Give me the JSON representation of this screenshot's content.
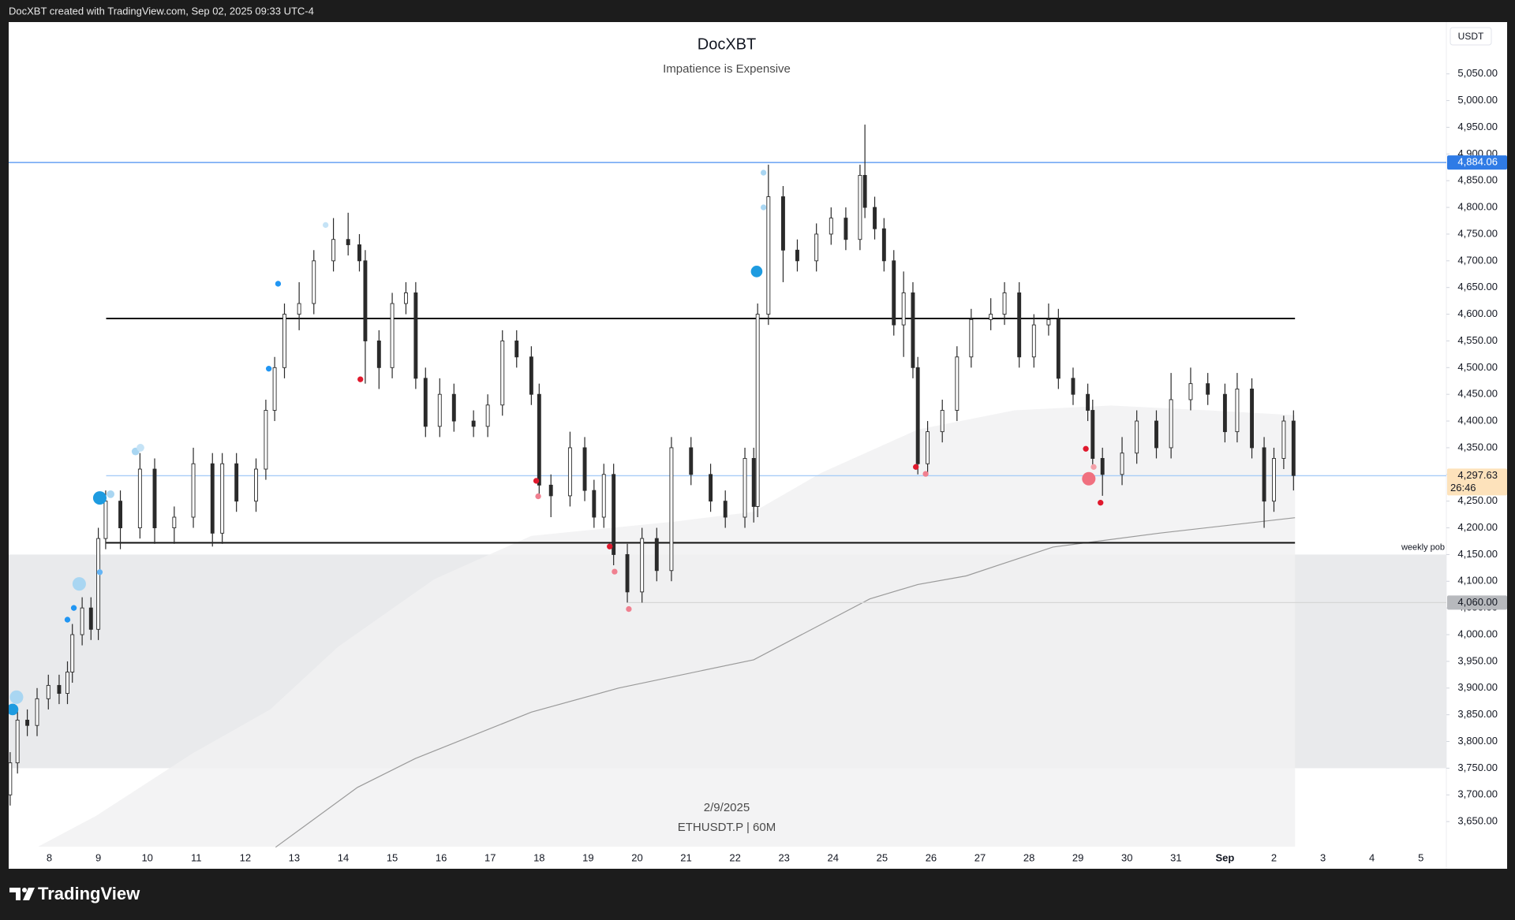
{
  "chart_data": {
    "type": "candlestick",
    "credit": "DocXBT created with TradingView.com, Sep 02, 2025 09:33 UTC-4",
    "title": "DocXBT",
    "subtitle": "Impatience is Expensive",
    "currency": "USDT",
    "watermark": [
      "2/9/2025",
      "ETHUSDT.P | 60M"
    ],
    "brand": "TradingView",
    "xlim": [
      7.17,
      36.52
    ],
    "ylim": [
      3603,
      5147
    ],
    "xticks": [
      8,
      9,
      10,
      11,
      12,
      13,
      14,
      15,
      16,
      17,
      18,
      19,
      20,
      21,
      22,
      23,
      24,
      25,
      26,
      27,
      28,
      29,
      30,
      31,
      {
        "value": 32,
        "label": "Sep"
      },
      {
        "value": 33,
        "label": "2"
      },
      {
        "value": 34,
        "label": "3"
      },
      {
        "value": 35,
        "label": "4"
      },
      {
        "value": 36,
        "label": "5"
      }
    ],
    "yticks": [
      {
        "value": 3650,
        "label": "3,650.00"
      },
      {
        "value": 3700,
        "label": "3,700.00"
      },
      {
        "value": 3750,
        "label": "3,750.00"
      },
      {
        "value": 3800,
        "label": "3,800.00"
      },
      {
        "value": 3850,
        "label": "3,850.00"
      },
      {
        "value": 3900,
        "label": "3,900.00"
      },
      {
        "value": 3950,
        "label": "3,950.00"
      },
      {
        "value": 4000,
        "label": "4,000.00"
      },
      {
        "value": 4050,
        "label": "4,050.00"
      },
      {
        "value": 4100,
        "label": "4,100.00"
      },
      {
        "value": 4150,
        "label": "4,150.00"
      },
      {
        "value": 4200,
        "label": "4,200.00"
      },
      {
        "value": 4250,
        "label": "4,250.00"
      },
      {
        "value": 4300,
        "label": "4,300.00"
      },
      {
        "value": 4350,
        "label": "4,350.00"
      },
      {
        "value": 4400,
        "label": "4,400.00"
      },
      {
        "value": 4450,
        "label": "4,450.00"
      },
      {
        "value": 4500,
        "label": "4,500.00"
      },
      {
        "value": 4550,
        "label": "4,550.00"
      },
      {
        "value": 4600,
        "label": "4,600.00"
      },
      {
        "value": 4650,
        "label": "4,650.00"
      },
      {
        "value": 4700,
        "label": "4,700.00"
      },
      {
        "value": 4750,
        "label": "4,750.00"
      },
      {
        "value": 4800,
        "label": "4,800.00"
      },
      {
        "value": 4850,
        "label": "4,850.00"
      },
      {
        "value": 4900,
        "label": "4,900.00"
      },
      {
        "value": 4950,
        "label": "4,950.00"
      },
      {
        "value": 5000,
        "label": "5,000.00"
      },
      {
        "value": 5050,
        "label": "5,050.00"
      }
    ],
    "grid": false,
    "up_color": "#ffffff",
    "down_color": "#2a2a2a",
    "outline_color": "#2a2a2a",
    "candles": {
      "x": [
        7.2,
        7.35,
        7.55,
        7.75,
        7.98,
        8.2,
        8.37,
        8.47,
        8.67,
        8.85,
        9.0,
        9.15,
        9.45,
        9.85,
        10.15,
        10.55,
        10.94,
        11.33,
        11.53,
        11.82,
        12.22,
        12.42,
        12.6,
        12.8,
        13.1,
        13.4,
        13.8,
        14.1,
        14.33,
        14.45,
        14.73,
        15.0,
        15.28,
        15.48,
        15.68,
        15.97,
        16.26,
        16.66,
        16.95,
        17.25,
        17.54,
        17.84,
        18.0,
        18.24,
        18.63,
        18.93,
        19.12,
        19.32,
        19.52,
        19.8,
        20.1,
        20.4,
        20.7,
        21.1,
        21.5,
        21.8,
        22.2,
        22.38,
        22.46,
        22.68,
        22.98,
        23.27,
        23.66,
        23.96,
        24.26,
        24.55,
        24.65,
        24.85,
        25.04,
        25.24,
        25.44,
        25.63,
        25.73,
        25.93,
        26.23,
        26.53,
        26.82,
        27.22,
        27.5,
        27.8,
        28.1,
        28.4,
        28.6,
        28.9,
        29.2,
        29.3,
        29.5,
        29.9,
        30.2,
        30.6,
        30.9,
        31.3,
        31.65,
        32.0,
        32.25,
        32.55,
        32.8,
        33.0,
        33.2,
        33.4
      ],
      "open": [
        3700,
        3760,
        3840,
        3830,
        3880,
        3905,
        3890,
        3930,
        4000,
        4050,
        4010,
        4180,
        4250,
        4200,
        4310,
        4200,
        4220,
        4320,
        4190,
        4320,
        4250,
        4310,
        4420,
        4500,
        4600,
        4620,
        4700,
        4740,
        4730,
        4700,
        4550,
        4500,
        4620,
        4640,
        4480,
        4390,
        4450,
        4400,
        4390,
        4430,
        4550,
        4520,
        4450,
        4280,
        4260,
        4350,
        4270,
        4220,
        4300,
        4150,
        4080,
        4180,
        4120,
        4350,
        4300,
        4250,
        4220,
        4330,
        4240,
        4600,
        4820,
        4720,
        4700,
        4750,
        4780,
        4740,
        4860,
        4800,
        4760,
        4700,
        4580,
        4640,
        4500,
        4320,
        4380,
        4420,
        4520,
        4590,
        4600,
        4640,
        4520,
        4580,
        4590,
        4480,
        4450,
        4420,
        4330,
        4300,
        4340,
        4400,
        4350,
        4440,
        4470,
        4450,
        4380,
        4460,
        4350,
        4250,
        4330,
        4400
      ],
      "high": [
        3780,
        3860,
        3860,
        3900,
        3925,
        3925,
        3950,
        4020,
        4070,
        4070,
        4200,
        4270,
        4270,
        4340,
        4330,
        4240,
        4350,
        4340,
        4340,
        4340,
        4330,
        4440,
        4520,
        4620,
        4660,
        4720,
        4780,
        4790,
        4750,
        4720,
        4570,
        4640,
        4660,
        4660,
        4500,
        4480,
        4470,
        4420,
        4450,
        4570,
        4570,
        4540,
        4470,
        4300,
        4380,
        4370,
        4290,
        4320,
        4320,
        4170,
        4200,
        4200,
        4370,
        4370,
        4320,
        4270,
        4350,
        4350,
        4620,
        4880,
        4840,
        4740,
        4770,
        4800,
        4800,
        4880,
        4955,
        4820,
        4780,
        4720,
        4680,
        4660,
        4520,
        4400,
        4440,
        4540,
        4610,
        4630,
        4660,
        4660,
        4600,
        4620,
        4610,
        4500,
        4470,
        4440,
        4350,
        4370,
        4420,
        4420,
        4490,
        4500,
        4490,
        4470,
        4490,
        4480,
        4370,
        4350,
        4410,
        4420
      ],
      "low": [
        3680,
        3740,
        3810,
        3810,
        3860,
        3870,
        3870,
        3910,
        3980,
        3990,
        3990,
        4160,
        4160,
        4180,
        4170,
        4170,
        4200,
        4165,
        4170,
        4230,
        4230,
        4290,
        4400,
        4480,
        4570,
        4600,
        4680,
        4710,
        4680,
        4470,
        4460,
        4480,
        4600,
        4460,
        4370,
        4370,
        4380,
        4370,
        4370,
        4410,
        4500,
        4430,
        4260,
        4220,
        4240,
        4250,
        4200,
        4200,
        4130,
        4060,
        4060,
        4100,
        4100,
        4280,
        4230,
        4200,
        4200,
        4210,
        4220,
        4580,
        4660,
        4680,
        4680,
        4730,
        4720,
        4720,
        4780,
        4740,
        4680,
        4560,
        4520,
        4480,
        4300,
        4300,
        4360,
        4400,
        4500,
        4570,
        4580,
        4500,
        4500,
        4560,
        4460,
        4430,
        4400,
        4310,
        4260,
        4280,
        4320,
        4330,
        4330,
        4420,
        4430,
        4360,
        4360,
        4330,
        4200,
        4230,
        4310,
        4270
      ],
      "close": [
        3760,
        3840,
        3830,
        3880,
        3905,
        3890,
        3930,
        4000,
        4050,
        4010,
        4180,
        4250,
        4200,
        4310,
        4200,
        4220,
        4320,
        4190,
        4320,
        4250,
        4310,
        4420,
        4500,
        4600,
        4620,
        4700,
        4740,
        4730,
        4700,
        4550,
        4500,
        4620,
        4640,
        4480,
        4390,
        4450,
        4400,
        4390,
        4430,
        4550,
        4520,
        4450,
        4280,
        4260,
        4350,
        4270,
        4220,
        4300,
        4150,
        4080,
        4180,
        4120,
        4350,
        4300,
        4250,
        4220,
        4330,
        4240,
        4600,
        4820,
        4720,
        4700,
        4750,
        4780,
        4740,
        4860,
        4800,
        4760,
        4700,
        4580,
        4640,
        4500,
        4320,
        4380,
        4420,
        4520,
        4590,
        4600,
        4640,
        4520,
        4580,
        4590,
        4480,
        4450,
        4420,
        4330,
        4300,
        4340,
        4400,
        4350,
        4440,
        4470,
        4450,
        4380,
        4460,
        4350,
        4250,
        4330,
        4400,
        4298
      ]
    },
    "moving_average": {
      "color": "#9a9a9a",
      "x": [
        12.62,
        14.29,
        15.47,
        17.84,
        19.62,
        22.38,
        24.75,
        25.73,
        26.72,
        28.49,
        30.66,
        33.43
      ],
      "values": [
        3602,
        3714,
        3768,
        3855,
        3900,
        3953,
        4067,
        4094,
        4110,
        4164,
        4190,
        4219
      ]
    },
    "shaded_area": {
      "color": "#f1f1f2",
      "x": [
        7.77,
        8.96,
        10.93,
        12.51,
        13.89,
        15.86,
        17.84,
        20.8,
        22.38,
        23.76,
        25.73,
        27.7,
        29.67,
        31.65,
        33.43
      ],
      "values": [
        3603,
        3661,
        3778,
        3860,
        3977,
        4104,
        4185,
        4212,
        4230,
        4303,
        4384,
        4420,
        4429,
        4420,
        4411
      ]
    },
    "zone": {
      "range": [
        3750,
        4150
      ],
      "color": "#e9eaec",
      "label": "weekly pob"
    },
    "levels": [
      {
        "value": 4884.06,
        "label": "4,884.06",
        "color": "#4a8ff0",
        "tag_color": "#2f7be6",
        "tag_text_color": "#ffffff"
      },
      {
        "value": 4592,
        "color": "#111111",
        "x": [
          9.16,
          33.43
        ]
      },
      {
        "value": 4172,
        "color": "#111111",
        "x": [
          9.16,
          33.43
        ]
      },
      {
        "value": 4297.63,
        "label": "4,297.63",
        "countdown": "26:46",
        "color": "#a8cdf7",
        "x": [
          9.16,
          36.52
        ],
        "tag_color": "#fde2bb",
        "tag_text_color": "#131722"
      },
      {
        "value": 4060,
        "label": "4,060.00",
        "color": "#d6d6d6",
        "x": [
          19.82,
          36.52
        ],
        "tag_color": "#b7b9bd",
        "tag_text_color": "#131722"
      }
    ],
    "markers": {
      "x": [
        7.25,
        7.33,
        8.61,
        8.37,
        8.5,
        9.03,
        9.03,
        9.25,
        9.76,
        9.86,
        12.48,
        12.67,
        13.64,
        22.44,
        22.58,
        22.58,
        14.35,
        17.94,
        17.98,
        19.44,
        19.54,
        19.83,
        25.69,
        25.89,
        29.16,
        29.22,
        29.32,
        29.46
      ],
      "values": [
        3860,
        3883,
        4095,
        4028,
        4050,
        4117,
        4256,
        4263,
        4343,
        4350,
        4498,
        4657,
        4767,
        4680,
        4865,
        4800,
        4478,
        4288,
        4259,
        4165,
        4118,
        4048,
        4314,
        4301,
        4348,
        4292,
        4314,
        4247
      ],
      "sizes": [
        6,
        7,
        7,
        3,
        3,
        3,
        7,
        4,
        4,
        4,
        3,
        3,
        3,
        6,
        3,
        3,
        3,
        3,
        3,
        3,
        3,
        3,
        3,
        3,
        3,
        7,
        3,
        3
      ],
      "colors": [
        "#1e9be0",
        "#a9d6f2",
        "#a9d6f2",
        "#2196f3",
        "#2196f3",
        "#64b5f6",
        "#1e9be0",
        "#a9d6f2",
        "#a9d6f2",
        "#c5e3f6",
        "#2196f3",
        "#2196f3",
        "#c5e3f6",
        "#1e9be0",
        "#a9d6f2",
        "#a9d6f2",
        "#e0192d",
        "#e0192d",
        "#f08090",
        "#e0192d",
        "#f08090",
        "#f08090",
        "#e0192d",
        "#f08090",
        "#e0192d",
        "#f0707f",
        "#f4a0a8",
        "#e0192d"
      ]
    }
  }
}
